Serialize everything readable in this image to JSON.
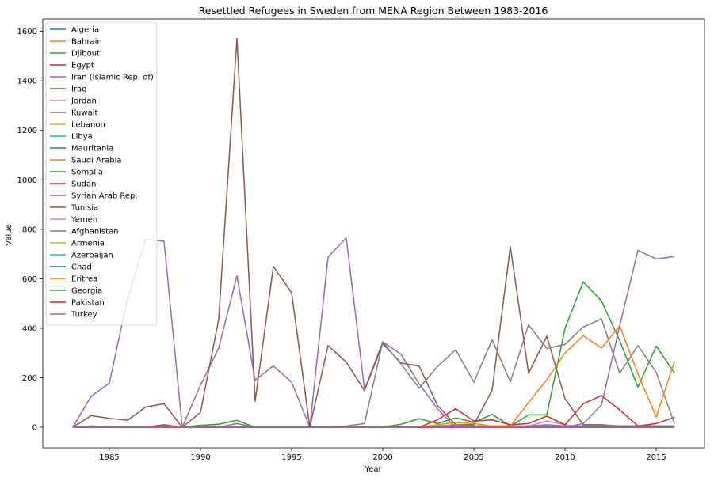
{
  "chart_data": {
    "type": "line",
    "title": "Resettled Refugees in Sweden from MENA Region Between 1983-2016",
    "xlabel": "Year",
    "ylabel": "Value",
    "xlim": [
      1981.35,
      2017.65
    ],
    "ylim": [
      -83,
      1650
    ],
    "x_ticks": [
      1985,
      1990,
      1995,
      2000,
      2005,
      2010,
      2015
    ],
    "y_ticks": [
      0,
      200,
      400,
      600,
      800,
      1000,
      1200,
      1400,
      1600
    ],
    "legend_position": "upper-left",
    "grid": false,
    "x": [
      1983,
      1984,
      1985,
      1986,
      1987,
      1988,
      1989,
      1990,
      1991,
      1992,
      1993,
      1994,
      1995,
      1996,
      1997,
      1998,
      1999,
      2000,
      2001,
      2002,
      2003,
      2004,
      2005,
      2006,
      2007,
      2008,
      2009,
      2010,
      2011,
      2012,
      2013,
      2014,
      2015,
      2016
    ],
    "series": [
      {
        "name": "Algeria",
        "color": "#1f77b4",
        "values": [
          0,
          0,
          0,
          0,
          0,
          0,
          0,
          0,
          0,
          0,
          0,
          0,
          0,
          0,
          0,
          0,
          0,
          0,
          0,
          0,
          0,
          0,
          0,
          0,
          0,
          0,
          0,
          0,
          0,
          0,
          0,
          0,
          0,
          0
        ]
      },
      {
        "name": "Bahrain",
        "color": "#ff7f0e",
        "values": [
          0,
          0,
          0,
          0,
          0,
          0,
          0,
          0,
          0,
          0,
          0,
          0,
          0,
          0,
          0,
          0,
          0,
          0,
          0,
          0,
          0,
          0,
          0,
          0,
          0,
          0,
          0,
          0,
          0,
          0,
          0,
          0,
          0,
          0
        ]
      },
      {
        "name": "Djibouti",
        "color": "#2ca02c",
        "values": [
          0,
          0,
          0,
          0,
          0,
          0,
          0,
          0,
          0,
          0,
          0,
          0,
          0,
          0,
          0,
          0,
          0,
          0,
          0,
          0,
          0,
          0,
          0,
          0,
          0,
          0,
          0,
          0,
          0,
          0,
          0,
          0,
          0,
          0
        ]
      },
      {
        "name": "Egypt",
        "color": "#d62728",
        "values": [
          0,
          0,
          0,
          0,
          0,
          0,
          0,
          0,
          0,
          0,
          0,
          0,
          0,
          0,
          0,
          0,
          0,
          0,
          0,
          0,
          0,
          0,
          0,
          0,
          0,
          0,
          0,
          0,
          0,
          0,
          0,
          0,
          0,
          0
        ]
      },
      {
        "name": "Iran (Islamic Rep. of)",
        "color": "#9467bd",
        "values": [
          0,
          125,
          178,
          520,
          760,
          752,
          0,
          170,
          320,
          612,
          190,
          248,
          182,
          0,
          688,
          765,
          152,
          345,
          295,
          175,
          75,
          0,
          0,
          0,
          0,
          5,
          10,
          5,
          5,
          5,
          5,
          5,
          5,
          5
        ]
      },
      {
        "name": "Iraq",
        "color": "#8c564b",
        "values": [
          0,
          47,
          36,
          28,
          82,
          95,
          0,
          60,
          436,
          1572,
          105,
          650,
          543,
          0,
          330,
          263,
          148,
          338,
          260,
          247,
          88,
          10,
          10,
          150,
          730,
          218,
          368,
          115,
          10,
          10,
          5,
          5,
          5,
          5
        ]
      },
      {
        "name": "Jordan",
        "color": "#e377c2",
        "values": [
          0,
          0,
          0,
          0,
          0,
          0,
          0,
          0,
          0,
          2,
          0,
          0,
          0,
          0,
          0,
          0,
          0,
          0,
          0,
          0,
          0,
          2,
          5,
          5,
          0,
          5,
          25,
          10,
          0,
          5,
          5,
          2,
          2,
          2
        ]
      },
      {
        "name": "Kuwait",
        "color": "#7f7f7f",
        "values": [
          0,
          2,
          0,
          0,
          0,
          0,
          0,
          0,
          0,
          0,
          0,
          0,
          0,
          0,
          0,
          2,
          0,
          0,
          0,
          0,
          5,
          10,
          5,
          5,
          5,
          5,
          5,
          5,
          5,
          5,
          5,
          5,
          5,
          5
        ]
      },
      {
        "name": "Lebanon",
        "color": "#bcbd22",
        "values": [
          0,
          0,
          0,
          0,
          0,
          0,
          0,
          0,
          0,
          0,
          0,
          0,
          0,
          0,
          0,
          0,
          0,
          0,
          0,
          0,
          0,
          0,
          0,
          0,
          0,
          0,
          0,
          0,
          0,
          0,
          0,
          0,
          0,
          0
        ]
      },
      {
        "name": "Libya",
        "color": "#17becf",
        "values": [
          0,
          0,
          0,
          0,
          0,
          0,
          0,
          0,
          0,
          0,
          0,
          0,
          0,
          0,
          0,
          0,
          0,
          0,
          0,
          0,
          0,
          0,
          0,
          0,
          0,
          0,
          0,
          0,
          0,
          0,
          0,
          0,
          0,
          0
        ]
      },
      {
        "name": "Mauritania",
        "color": "#1f77b4",
        "values": [
          0,
          0,
          0,
          0,
          0,
          0,
          0,
          0,
          0,
          0,
          0,
          0,
          0,
          0,
          0,
          0,
          0,
          0,
          0,
          0,
          0,
          0,
          0,
          0,
          0,
          0,
          0,
          0,
          0,
          0,
          0,
          0,
          0,
          0
        ]
      },
      {
        "name": "Saudi Arabia",
        "color": "#ff7f0e",
        "values": [
          0,
          0,
          0,
          0,
          0,
          0,
          0,
          0,
          0,
          0,
          0,
          0,
          0,
          0,
          0,
          0,
          0,
          0,
          0,
          0,
          0,
          0,
          0,
          0,
          0,
          0,
          0,
          0,
          0,
          0,
          0,
          0,
          0,
          0
        ]
      },
      {
        "name": "Somalia",
        "color": "#2ca02c",
        "values": [
          0,
          5,
          2,
          0,
          0,
          0,
          0,
          8,
          12,
          28,
          0,
          0,
          0,
          0,
          0,
          0,
          0,
          0,
          12,
          35,
          15,
          38,
          20,
          52,
          5,
          50,
          50,
          400,
          588,
          510,
          350,
          162,
          328,
          220
        ]
      },
      {
        "name": "Sudan",
        "color": "#d62728",
        "values": [
          0,
          0,
          0,
          0,
          0,
          10,
          0,
          0,
          0,
          0,
          0,
          0,
          0,
          0,
          0,
          0,
          0,
          0,
          0,
          0,
          30,
          75,
          25,
          30,
          10,
          15,
          45,
          10,
          95,
          128,
          70,
          5,
          15,
          40
        ]
      },
      {
        "name": "Syrian Arab Rep.",
        "color": "#9467bd",
        "values": [
          0,
          0,
          0,
          0,
          0,
          0,
          0,
          0,
          0,
          0,
          0,
          0,
          0,
          0,
          0,
          0,
          0,
          0,
          0,
          0,
          0,
          0,
          0,
          0,
          0,
          0,
          0,
          0,
          15,
          90,
          410,
          715,
          680,
          690
        ]
      },
      {
        "name": "Tunisia",
        "color": "#8c564b",
        "values": [
          0,
          0,
          0,
          0,
          0,
          0,
          0,
          0,
          0,
          0,
          0,
          0,
          0,
          0,
          0,
          0,
          0,
          0,
          0,
          0,
          0,
          0,
          0,
          0,
          0,
          0,
          0,
          0,
          0,
          0,
          0,
          0,
          0,
          0
        ]
      },
      {
        "name": "Yemen",
        "color": "#e377c2",
        "values": [
          0,
          0,
          0,
          0,
          0,
          0,
          0,
          0,
          0,
          0,
          0,
          0,
          0,
          0,
          0,
          0,
          0,
          0,
          0,
          0,
          0,
          0,
          0,
          0,
          0,
          0,
          0,
          0,
          0,
          0,
          0,
          0,
          0,
          0
        ]
      },
      {
        "name": "Afghanistan",
        "color": "#7f7f7f",
        "values": [
          0,
          5,
          0,
          0,
          0,
          0,
          0,
          0,
          0,
          15,
          0,
          0,
          0,
          0,
          0,
          5,
          15,
          345,
          255,
          158,
          245,
          313,
          182,
          354,
          183,
          414,
          318,
          335,
          405,
          438,
          218,
          330,
          222,
          15
        ]
      },
      {
        "name": "Armenia",
        "color": "#bcbd22",
        "values": [
          0,
          0,
          0,
          0,
          0,
          0,
          0,
          0,
          0,
          0,
          0,
          0,
          0,
          0,
          0,
          0,
          0,
          0,
          0,
          0,
          0,
          0,
          0,
          0,
          0,
          0,
          0,
          0,
          0,
          0,
          0,
          0,
          0,
          0
        ]
      },
      {
        "name": "Azerbaijan",
        "color": "#17becf",
        "values": [
          0,
          0,
          0,
          0,
          0,
          0,
          0,
          0,
          0,
          0,
          0,
          0,
          0,
          0,
          0,
          0,
          0,
          0,
          0,
          0,
          0,
          0,
          0,
          0,
          0,
          0,
          0,
          0,
          0,
          0,
          0,
          0,
          0,
          0
        ]
      },
      {
        "name": "Chad",
        "color": "#1f77b4",
        "values": [
          0,
          0,
          0,
          0,
          0,
          0,
          0,
          0,
          0,
          0,
          0,
          0,
          0,
          0,
          0,
          0,
          0,
          0,
          0,
          0,
          0,
          0,
          0,
          0,
          0,
          0,
          0,
          0,
          0,
          0,
          0,
          0,
          0,
          0
        ]
      },
      {
        "name": "Eritrea",
        "color": "#ff7f0e",
        "values": [
          0,
          0,
          0,
          0,
          0,
          0,
          0,
          0,
          0,
          0,
          0,
          0,
          0,
          0,
          0,
          0,
          0,
          0,
          0,
          0,
          10,
          20,
          15,
          5,
          5,
          100,
          192,
          300,
          370,
          320,
          410,
          215,
          42,
          265
        ]
      },
      {
        "name": "Georgia",
        "color": "#2ca02c",
        "values": [
          0,
          0,
          0,
          0,
          0,
          0,
          0,
          0,
          0,
          0,
          0,
          0,
          0,
          0,
          0,
          0,
          0,
          0,
          0,
          0,
          0,
          0,
          0,
          0,
          0,
          0,
          0,
          0,
          0,
          0,
          0,
          0,
          0,
          0
        ]
      },
      {
        "name": "Pakistan",
        "color": "#d62728",
        "values": [
          0,
          0,
          0,
          0,
          0,
          0,
          0,
          0,
          0,
          0,
          0,
          0,
          0,
          0,
          0,
          0,
          0,
          0,
          0,
          0,
          0,
          0,
          0,
          0,
          0,
          0,
          0,
          0,
          0,
          0,
          0,
          0,
          0,
          0
        ]
      },
      {
        "name": "Turkey",
        "color": "#9467bd",
        "values": [
          0,
          0,
          0,
          0,
          0,
          0,
          0,
          0,
          0,
          0,
          0,
          0,
          0,
          0,
          0,
          0,
          0,
          0,
          0,
          0,
          0,
          0,
          0,
          0,
          0,
          0,
          0,
          0,
          0,
          0,
          0,
          0,
          0,
          0
        ]
      }
    ]
  }
}
